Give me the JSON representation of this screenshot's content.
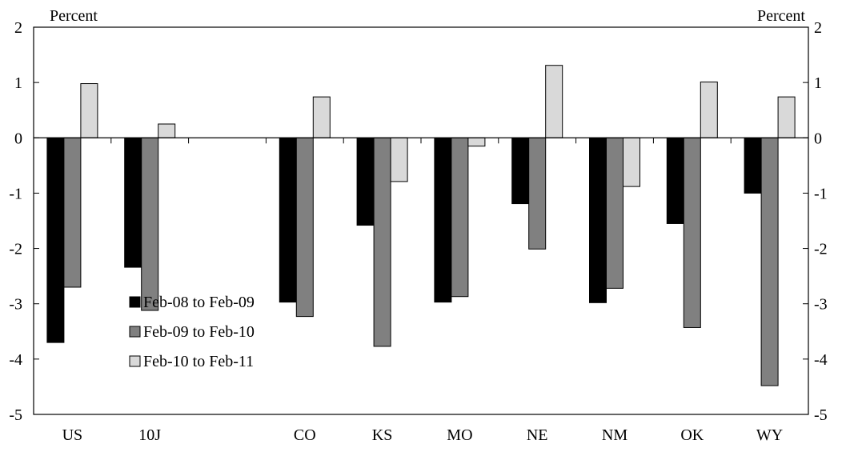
{
  "chart_data": {
    "type": "bar",
    "left_unit_label": "Percent",
    "right_unit_label": "Percent",
    "categories": [
      "US",
      "10J",
      "",
      "CO",
      "KS",
      "MO",
      "NE",
      "NM",
      "OK",
      "WY"
    ],
    "ylim": [
      -5,
      2
    ],
    "yticks": [
      "2",
      "1",
      "0",
      "-1",
      "-2",
      "-3",
      "-4",
      "-5"
    ],
    "ytick_values": [
      2,
      1,
      0,
      -1,
      -2,
      -3,
      -4,
      -5
    ],
    "legend_position": "bottom-left",
    "grid": false,
    "series": [
      {
        "name": "Feb-08 to Feb-09",
        "color": "#000000",
        "values": [
          -3.7,
          -2.34,
          null,
          -2.97,
          -1.58,
          -2.97,
          -1.19,
          -2.98,
          -1.55,
          -1.0
        ]
      },
      {
        "name": "Feb-09 to Feb-10",
        "color": "#808080",
        "values": [
          -2.7,
          -3.12,
          null,
          -3.23,
          -3.77,
          -2.87,
          -2.01,
          -2.72,
          -3.43,
          -4.48
        ]
      },
      {
        "name": "Feb-10 to Feb-11",
        "color": "#d9d9d9",
        "values": [
          0.98,
          0.25,
          null,
          0.74,
          -0.79,
          -0.15,
          1.31,
          -0.88,
          1.01,
          0.74
        ]
      }
    ]
  }
}
